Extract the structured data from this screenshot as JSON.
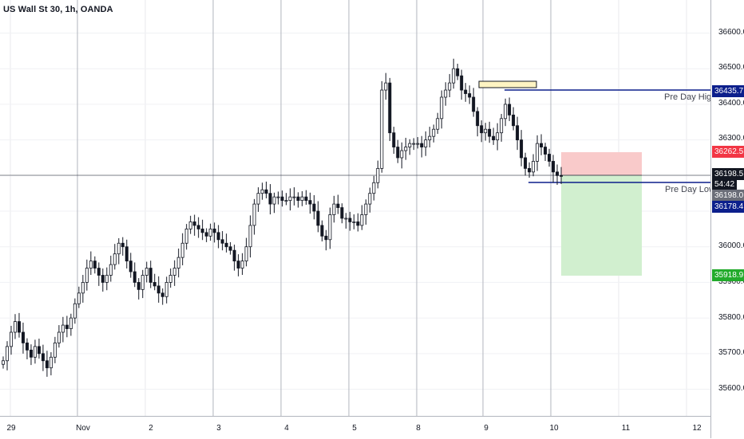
{
  "title": "US Wall St 30, 1h, OANDA",
  "price_axis": {
    "ticks": [
      "36600.0",
      "36500.0",
      "36400.0",
      "36300.0",
      "36000.0",
      "35900.0",
      "35800.0",
      "35700.0",
      "35600.0"
    ]
  },
  "time_axis": {
    "labels": [
      "29",
      "Nov",
      "2",
      "3",
      "4",
      "5",
      "8",
      "9",
      "10",
      "11",
      "12"
    ]
  },
  "badges": {
    "pre_day_high": "36435.7",
    "stop": "36262.5",
    "last_price": "36198.5",
    "countdown": "54:42",
    "bid": "36198.0",
    "pre_day_low": "36178.4",
    "target": "35918.9"
  },
  "lines": {
    "pre_day_high_label": "Pre Day High",
    "pre_day_low_label": "Pre Day Low"
  },
  "colors": {
    "up": "#131722",
    "down": "#131722",
    "line": "#0c1f8c",
    "stop_zone": "#f9caca",
    "target_zone": "#d1efcf",
    "badge_blue": "#0c1f8c",
    "badge_red": "#f23645",
    "badge_green": "#22ab2b",
    "badge_black": "#131722",
    "highlight": "#fff4c2"
  }
}
